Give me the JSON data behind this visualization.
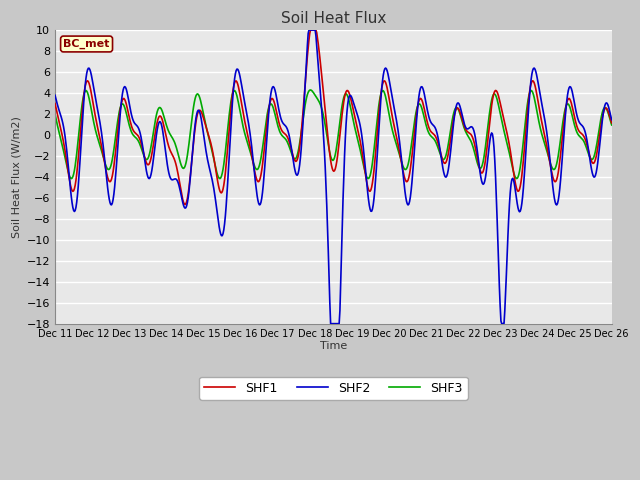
{
  "title": "Soil Heat Flux",
  "ylabel": "Soil Heat Flux (W/m2)",
  "xlabel": "Time",
  "ylim": [
    -18,
    10
  ],
  "bg_color": "#e8e8e8",
  "fig_bg_color": "#c8c8c8",
  "grid_color": "white",
  "line_colors": {
    "SHF1": "#cc0000",
    "SHF2": "#0000cc",
    "SHF3": "#00aa00"
  },
  "line_width": 1.2,
  "bc_met_label": "BC_met",
  "bc_met_bg": "#ffffcc",
  "bc_met_border": "#8b0000",
  "x_tick_labels": [
    "Dec 11",
    "Dec 12",
    "Dec 13",
    "Dec 14",
    "Dec 15",
    "Dec 16",
    "Dec 17",
    "Dec 18",
    "Dec 19",
    "Dec 20",
    "Dec 21",
    "Dec 22",
    "Dec 23",
    "Dec 24",
    "Dec 25",
    "Dec 26"
  ],
  "yticks": [
    10,
    8,
    6,
    4,
    2,
    0,
    -2,
    -4,
    -6,
    -8,
    -10,
    -12,
    -14,
    -16,
    -18
  ]
}
